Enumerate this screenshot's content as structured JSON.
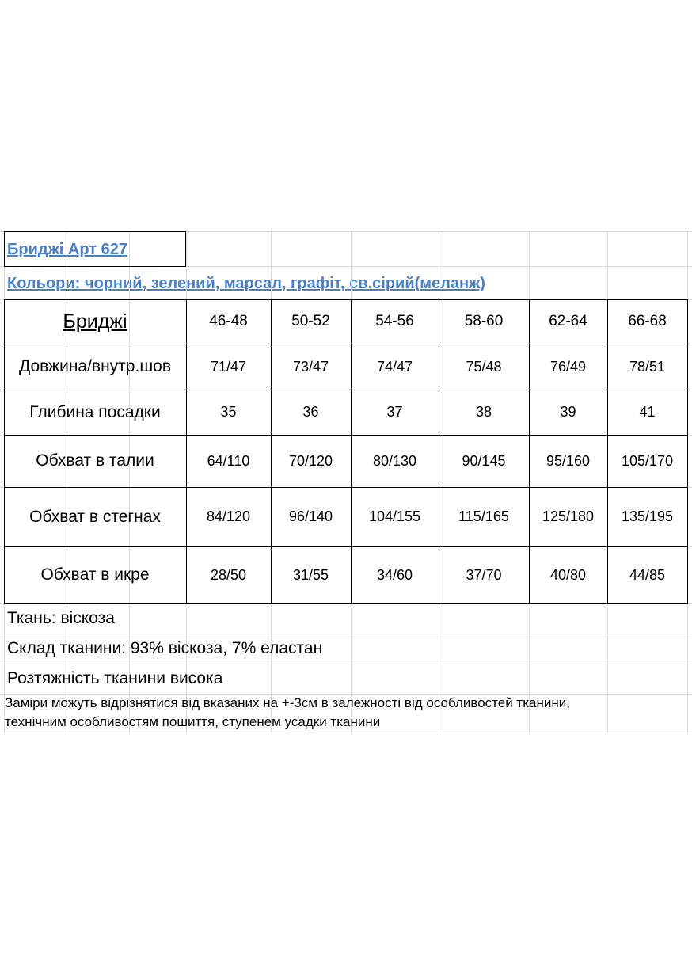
{
  "title": "Бриджі Арт 627",
  "colors": "Кольори: чорний, зелений, марсал, графіт, св.сірий(меланж)",
  "table": {
    "header": [
      "Бриджі",
      "46-48",
      "50-52",
      "54-56",
      "58-60",
      "62-64",
      "66-68"
    ],
    "rows": [
      [
        "Довжина/внутр.шов",
        "71/47",
        "73/47",
        "74/47",
        "75/48",
        "76/49",
        "78/51"
      ],
      [
        "Глибина посадки",
        "35",
        "36",
        "37",
        "38",
        "39",
        "41"
      ],
      [
        "Обхват в талии",
        "64/110",
        "70/120",
        "80/130",
        "90/145",
        "95/160",
        "105/170"
      ],
      [
        "Обхват в стегнах",
        "84/120",
        "96/140",
        "104/155",
        "115/165",
        "125/180",
        "135/195"
      ],
      [
        "Обхват в икре",
        "28/50",
        "31/55",
        "34/60",
        "37/70",
        "40/80",
        "44/85"
      ]
    ]
  },
  "notes": [
    "Ткань: віскоза",
    "Склад тканини: 93% віскоза, 7% еластан",
    "Розтяжність тканини висока"
  ],
  "disclaimer": [
    "Заміри можуть відрізнятися від вказаних на +-3см в залежності від особливостей тканини,",
    "технічним особливостям пошиття, ступенем усадки тканини"
  ]
}
